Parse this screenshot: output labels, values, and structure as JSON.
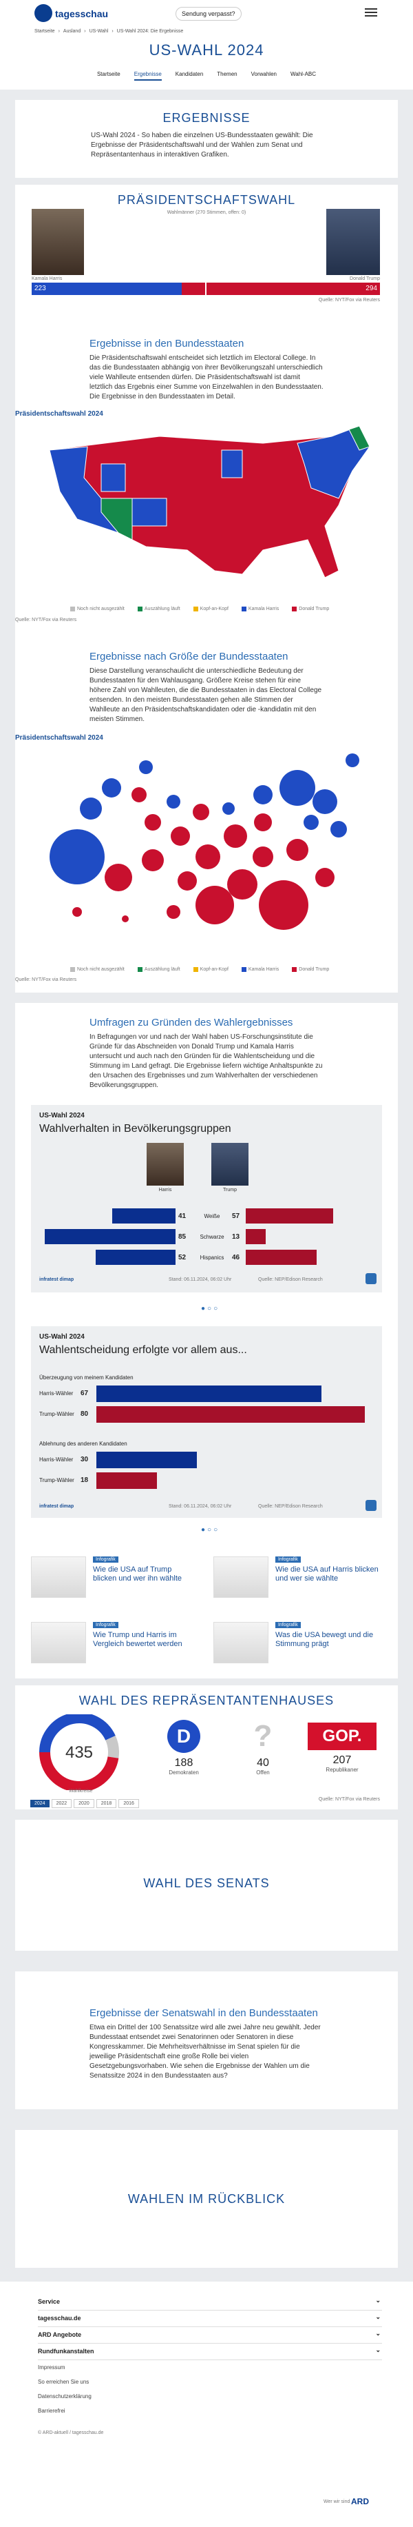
{
  "header": {
    "logo": "tagesschau",
    "live_button": "Sendung verpasst?"
  },
  "breadcrumb": [
    "Startseite",
    "Ausland",
    "US-Wahl",
    "US-Wahl 2024: Die Ergebnisse"
  ],
  "page_title": "US-WAHL 2024",
  "nav": [
    "Startseite",
    "Ergebnisse",
    "Kandidaten",
    "Themen",
    "Vorwahlen",
    "Wahl-ABC"
  ],
  "intro": {
    "title": "ERGEBNISSE",
    "text": "US-Wahl 2024 - So haben die einzelnen US-Bundesstaaten gewählt: Die Ergebnisse der Präsidentschaftswahl und der Wahlen zum Senat und Repräsentantenhaus in interaktiven Grafiken."
  },
  "president": {
    "title": "PRÄSIDENTSCHAFTSWAHL",
    "subtitle": "Wahlmänner (270 Stimmen, offen: 0)",
    "candidates": [
      {
        "name": "Kamala Harris",
        "votes": 223,
        "color": "#1f4cc4"
      },
      {
        "name": "Donald Trump",
        "votes": 294,
        "color": "#c8102e"
      }
    ],
    "source": "Quelle: NYT/Fox via Reuters"
  },
  "states_section": {
    "title": "Ergebnisse in den Bundesstaaten",
    "text": "Die Präsidentschaftswahl entscheidet sich letztlich im Electoral College. In das die Bundesstaaten abhängig von ihrer Bevölkerungszahl unterschiedlich viele Wahlleute entsenden dürfen. Die Präsidentschaftswahl ist damit letztlich das Ergebnis einer Summe von Einzelwahlen in den Bundesstaaten. Die Ergebnisse in den Bundesstaaten im Detail."
  },
  "map": {
    "title": "Präsidentschaftswahl 2024",
    "legend": [
      "Noch nicht ausgezählt",
      "Auszählung läuft",
      "Kopf-an-Kopf",
      "Kamala Harris",
      "Donald Trump"
    ],
    "source": "Quelle: NYT/Fox via Reuters"
  },
  "size_section": {
    "title": "Ergebnisse nach Größe der Bundesstaaten",
    "text": "Diese Darstellung veranschaulicht die unterschiedliche Bedeutung der Bundesstaaten für den Wahlausgang. Größere Kreise stehen für eine höhere Zahl von Wahlleuten, die die Bundesstaaten in das Electoral College entsenden. In den meisten Bundesstaaten gehen alle Stimmen der Wahlleute an den Präsidentschaftskandidaten oder die -kandidatin mit den meisten Stimmen."
  },
  "bubbles": {
    "title": "Präsidentschaftswahl 2024",
    "legend": [
      "Noch nicht ausgezählt",
      "Auszählung läuft",
      "Kopf-an-Kopf",
      "Kamala Harris",
      "Donald Trump"
    ],
    "source": "Quelle: NYT/Fox via Reuters"
  },
  "polls_section": {
    "title": "Umfragen zu Gründen des Wahlergebnisses",
    "text": "In Befragungen vor und nach der Wahl haben US-Forschungsinstitute die Gründe für das Abschneiden von Donald Trump und Kamala Harris untersucht und auch nach den Gründen für die Wahlentscheidung und die Stimmung im Land gefragt. Die Ergebnisse liefern wichtige Anhaltspunkte zu den Ursachen des Ergebnisses und zum Wahlverhalten der verschiedenen Bevölkerungsgruppen."
  },
  "chart1": {
    "kicker": "US-Wahl 2024",
    "title": "Wahlverhalten in Bevölkerungsgruppen",
    "candidates": [
      "Harris",
      "Trump"
    ],
    "rows": [
      {
        "label": "Weiße",
        "values": [
          41,
          57
        ]
      },
      {
        "label": "Schwarze",
        "values": [
          85,
          13
        ]
      },
      {
        "label": "Hispanics",
        "values": [
          52,
          46
        ]
      }
    ],
    "brand": "infratest dimap",
    "date": "Stand: 06.11.2024, 06:02 Uhr",
    "source": "Quelle: NEP/Edison Research"
  },
  "chart2": {
    "kicker": "US-Wahl 2024",
    "title": "Wahlentscheidung erfolgte vor allem aus...",
    "groups": [
      {
        "label": "Überzeugung von meinem Kandidaten",
        "rows": [
          {
            "label": "Harris-Wähler",
            "value": 67
          },
          {
            "label": "Trump-Wähler",
            "value": 80
          }
        ]
      },
      {
        "label": "Ablehnung des anderen Kandidaten",
        "rows": [
          {
            "label": "Harris-Wähler",
            "value": 30
          },
          {
            "label": "Trump-Wähler",
            "value": 18
          }
        ]
      }
    ],
    "brand": "infratest dimap",
    "date": "Stand: 06.11.2024, 06:02 Uhr",
    "source": "Quelle: NEP/Edison Research"
  },
  "teasers": [
    {
      "kicker": "Infografik",
      "title": "Wie die USA auf Trump blicken und wer ihn wählte"
    },
    {
      "kicker": "Infografik",
      "title": "Wie die USA auf Harris blicken und wer sie wählte"
    },
    {
      "kicker": "Infografik",
      "title": "Wie Trump und Harris im Vergleich bewertet werden"
    },
    {
      "kicker": "Infografik",
      "title": "Was die USA bewegt und die Stimmung prägt"
    }
  ],
  "house": {
    "title": "WAHL DES REPRÄSENTANTENHAUSES",
    "total": 435,
    "total_label": "Wahlkreise",
    "parties": [
      {
        "name": "Demokraten",
        "seats": 188,
        "color": "#1f4cc4",
        "logo": "D"
      },
      {
        "name": "Offen",
        "seats": 40,
        "color": "#c9c9c9",
        "logo": "?"
      },
      {
        "name": "Republikaner",
        "seats": 207,
        "color": "#d4112c",
        "logo": "GOP."
      }
    ],
    "years": [
      "2024",
      "2022",
      "2020",
      "2018",
      "2016"
    ],
    "source": "Quelle: NYT/Fox via Reuters"
  },
  "senate": {
    "title": "WAHL DES SENATS"
  },
  "senate_states": {
    "title": "Ergebnisse der Senatswahl in den Bundesstaaten",
    "text": "Etwa ein Drittel der 100 Senatssitze wird alle zwei Jahre neu gewählt. Jeder Bundesstaat entsendet zwei Senatorinnen oder Senatoren in diese Kongresskammer. Die Mehrheitsverhältnisse im Senat spielen für die jeweilige Präsidentschaft eine große Rolle bei vielen Gesetzgebungsvorhaben. Wie sehen die Ergebnisse der Wahlen um die Senatssitze 2024 in den Bundesstaaten aus?"
  },
  "review": {
    "title": "WAHLEN IM RÜCKBLICK"
  },
  "footer": {
    "sections": [
      "Service",
      "tagesschau.de",
      "ARD Angebote",
      "Rundfunkanstalten"
    ],
    "links": [
      "Impressum",
      "So erreichen Sie uns",
      "Datenschutzerklärung",
      "Barrierefrei"
    ],
    "copyright": "© ARD-aktuell / tagesschau.de",
    "about": "Wer wir sind",
    "ard": "ARD"
  }
}
